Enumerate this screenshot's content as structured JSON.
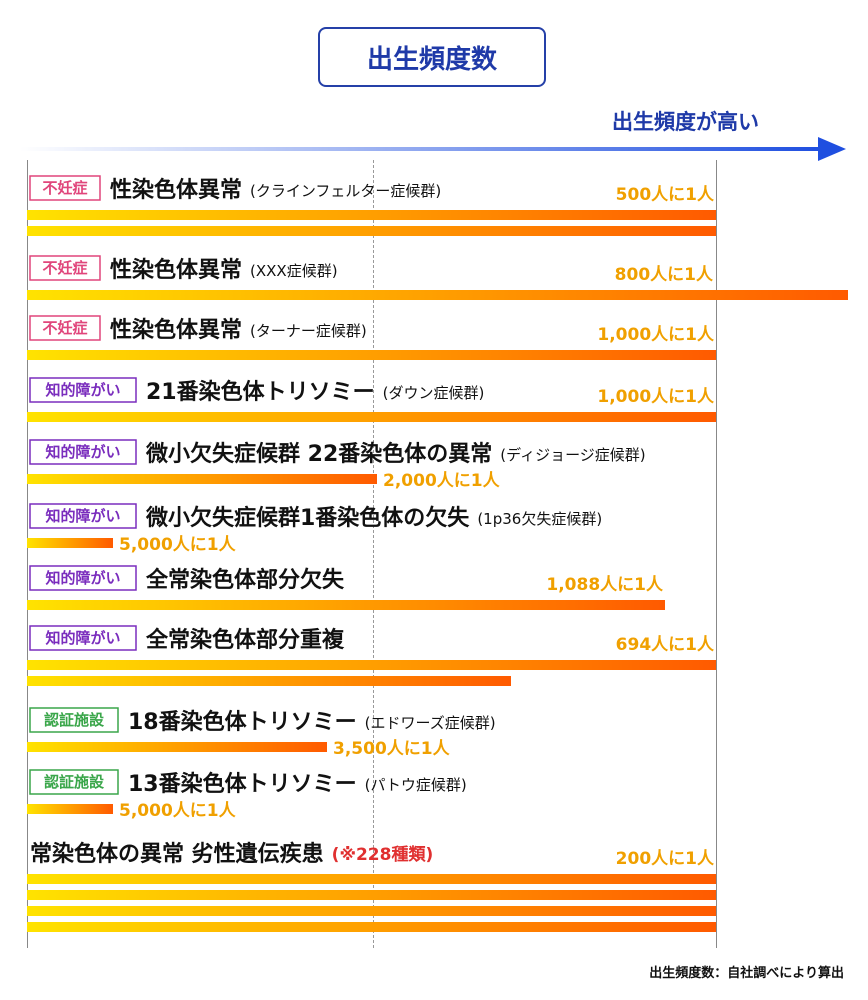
{
  "title": "出生頻度数",
  "direction_label": "出生頻度が高い",
  "footer": "出生頻度数：自社調べにより算出",
  "colors": {
    "bar_start": "#ffe300",
    "bar_end": "#ff5a00",
    "frequency_text": "#f0a000",
    "note_text": "#e03030",
    "arrow": "#1f4fe0",
    "badge_pink": "#e0457b",
    "badge_purple": "#7a2dbd",
    "badge_green": "#3aa64a"
  },
  "chart_data": {
    "type": "bar",
    "orientation": "horizontal",
    "value_meaning": "ratio: 1 in N",
    "rows": [
      {
        "badge": "不妊症",
        "badge_color": "pink",
        "name": "性染色体異常",
        "detail": "(クラインフェルター症候群)",
        "frequency": "500人に1人",
        "value": 500,
        "bars": 2
      },
      {
        "badge": "不妊症",
        "badge_color": "pink",
        "name": "性染色体異常",
        "detail": "(XXX症候群)",
        "frequency": "800人に1人",
        "value": 800,
        "bars": 1
      },
      {
        "badge": "不妊症",
        "badge_color": "pink",
        "name": "性染色体異常",
        "detail": "(ターナー症候群)",
        "frequency": "1,000人に1人",
        "value": 1000,
        "bars": 1
      },
      {
        "badge": "知的障がい",
        "badge_color": "purple",
        "name": "21番染色体トリソミー",
        "detail": "(ダウン症候群)",
        "frequency": "1,000人に1人",
        "value": 1000,
        "bars": 1
      },
      {
        "badge": "知的障がい",
        "badge_color": "purple",
        "name": "微小欠失症候群 22番染色体の異常",
        "detail": "(ディジョージ症候群)",
        "frequency": "2,000人に1人",
        "value": 2000,
        "bars": 1
      },
      {
        "badge": "知的障がい",
        "badge_color": "purple",
        "name": "微小欠失症候群1番染色体の欠失",
        "detail": "(1p36欠失症候群)",
        "frequency": "5,000人に1人",
        "value": 5000,
        "bars": 1
      },
      {
        "badge": "知的障がい",
        "badge_color": "purple",
        "name": "全常染色体部分欠失",
        "detail": "",
        "frequency": "1,088人に1人",
        "value": 1088,
        "bars": 1
      },
      {
        "badge": "知的障がい",
        "badge_color": "purple",
        "name": "全常染色体部分重複",
        "detail": "",
        "frequency": "694人に1人",
        "value": 694,
        "bars": 2
      },
      {
        "badge": "認証施設",
        "badge_color": "green",
        "name": "18番染色体トリソミー",
        "detail": "(エドワーズ症候群)",
        "frequency": "3,500人に1人",
        "value": 3500,
        "bars": 1
      },
      {
        "badge": "認証施設",
        "badge_color": "green",
        "name": "13番染色体トリソミー",
        "detail": "(パトウ症候群)",
        "frequency": "5,000人に1人",
        "value": 5000,
        "bars": 1
      },
      {
        "badge": "",
        "badge_color": "",
        "name": "常染色体の異常 劣性遺伝疾患",
        "detail": "(※228種類)",
        "frequency": "200人に1人",
        "value": 200,
        "bars": 4
      }
    ]
  }
}
